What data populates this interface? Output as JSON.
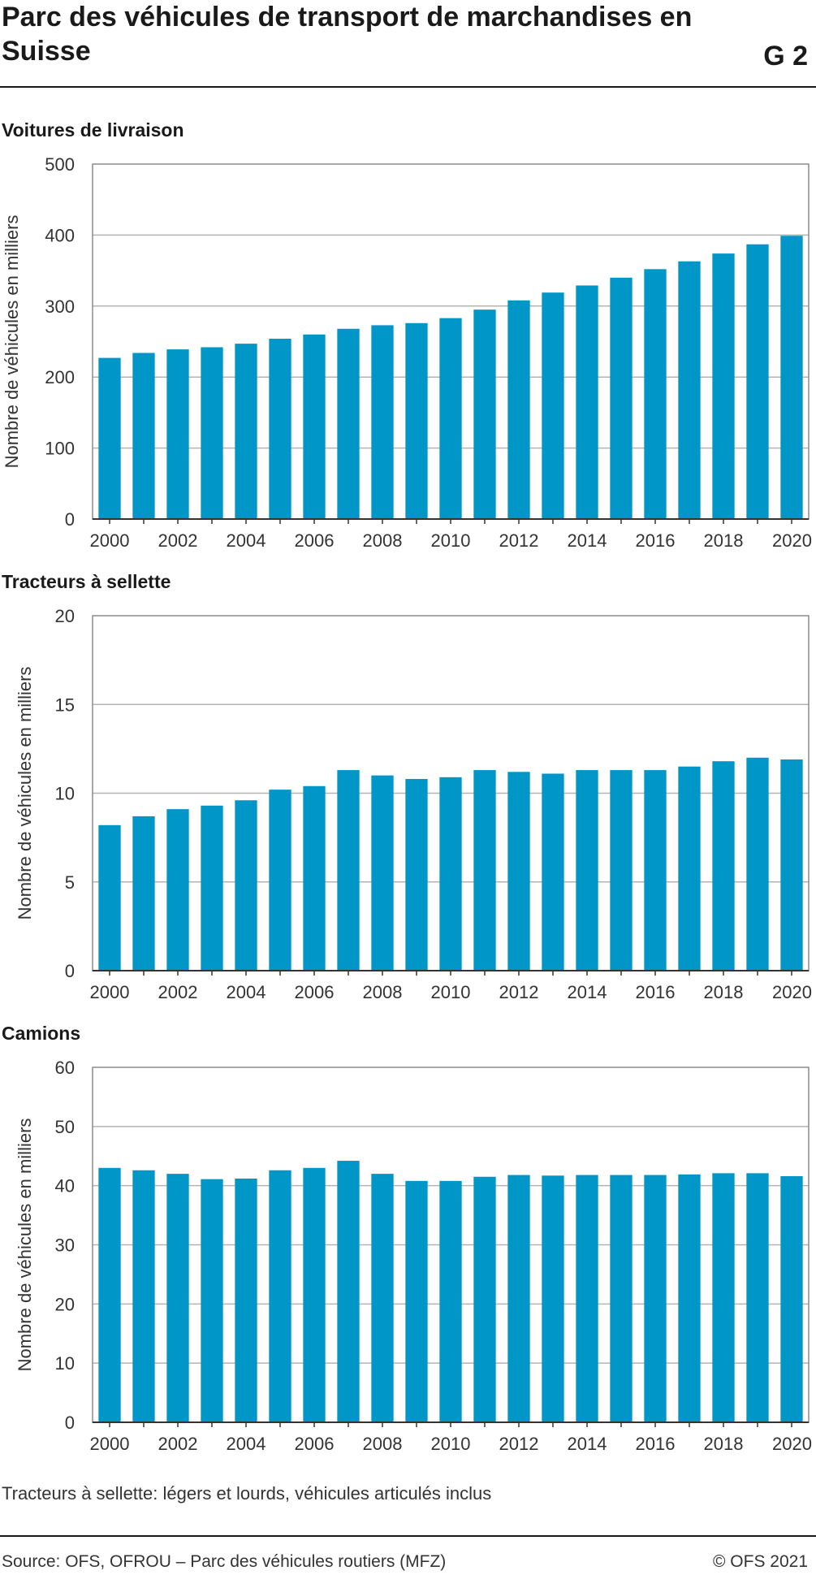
{
  "header": {
    "title": "Parc des véhicules de transport de marchandises en Suisse",
    "code": "G 2"
  },
  "footer": {
    "note": "Tracteurs à sellette: légers et lourds, véhicules articulés inclus",
    "source": "Source: OFS, OFROU – Parc des véhicules routiers (MFZ)",
    "copyright": "© OFS 2021"
  },
  "colors": {
    "bar": "#0096c7",
    "grid": "#b3b3b3",
    "frame": "#8c8c8c"
  },
  "chart_data": [
    {
      "type": "bar",
      "title": "Voitures de livraison",
      "ylabel": "Nombre de véhicules en milliers",
      "xlabel": "",
      "categories": [
        "2000",
        "2001",
        "2002",
        "2003",
        "2004",
        "2005",
        "2006",
        "2007",
        "2008",
        "2009",
        "2010",
        "2011",
        "2012",
        "2013",
        "2014",
        "2015",
        "2016",
        "2017",
        "2018",
        "2019",
        "2020"
      ],
      "values": [
        227,
        234,
        239,
        242,
        247,
        254,
        260,
        268,
        273,
        276,
        283,
        295,
        308,
        319,
        329,
        340,
        352,
        363,
        374,
        387,
        399
      ],
      "x_tick_labels": [
        "2000",
        "2002",
        "2004",
        "2006",
        "2008",
        "2010",
        "2012",
        "2014",
        "2016",
        "2018",
        "2020"
      ],
      "ylim": [
        0,
        500
      ],
      "yticks": [
        0,
        100,
        200,
        300,
        400,
        500
      ],
      "grid": true
    },
    {
      "type": "bar",
      "title": "Tracteurs à sellette",
      "ylabel": "Nombre de véhicules en milliers",
      "xlabel": "",
      "categories": [
        "2000",
        "2001",
        "2002",
        "2003",
        "2004",
        "2005",
        "2006",
        "2007",
        "2008",
        "2009",
        "2010",
        "2011",
        "2012",
        "2013",
        "2014",
        "2015",
        "2016",
        "2017",
        "2018",
        "2019",
        "2020"
      ],
      "values": [
        8.2,
        8.7,
        9.1,
        9.3,
        9.6,
        10.2,
        10.4,
        11.3,
        11.0,
        10.8,
        10.9,
        11.3,
        11.2,
        11.1,
        11.3,
        11.3,
        11.3,
        11.5,
        11.8,
        12.0,
        11.9
      ],
      "x_tick_labels": [
        "2000",
        "2002",
        "2004",
        "2006",
        "2008",
        "2010",
        "2012",
        "2014",
        "2016",
        "2018",
        "2020"
      ],
      "ylim": [
        0,
        20
      ],
      "yticks": [
        0,
        5,
        10,
        15,
        20
      ],
      "grid": true
    },
    {
      "type": "bar",
      "title": "Camions",
      "ylabel": "Nombre de véhicules en milliers",
      "xlabel": "",
      "categories": [
        "2000",
        "2001",
        "2002",
        "2003",
        "2004",
        "2005",
        "2006",
        "2007",
        "2008",
        "2009",
        "2010",
        "2011",
        "2012",
        "2013",
        "2014",
        "2015",
        "2016",
        "2017",
        "2018",
        "2019",
        "2020"
      ],
      "values": [
        43.0,
        42.6,
        42.0,
        41.1,
        41.2,
        42.6,
        43.0,
        44.2,
        42.0,
        40.8,
        40.8,
        41.5,
        41.8,
        41.7,
        41.8,
        41.8,
        41.8,
        41.9,
        42.1,
        42.1,
        41.6
      ],
      "x_tick_labels": [
        "2000",
        "2002",
        "2004",
        "2006",
        "2008",
        "2010",
        "2012",
        "2014",
        "2016",
        "2018",
        "2020"
      ],
      "ylim": [
        0,
        60
      ],
      "yticks": [
        0,
        10,
        20,
        30,
        40,
        50,
        60
      ],
      "grid": true
    }
  ]
}
